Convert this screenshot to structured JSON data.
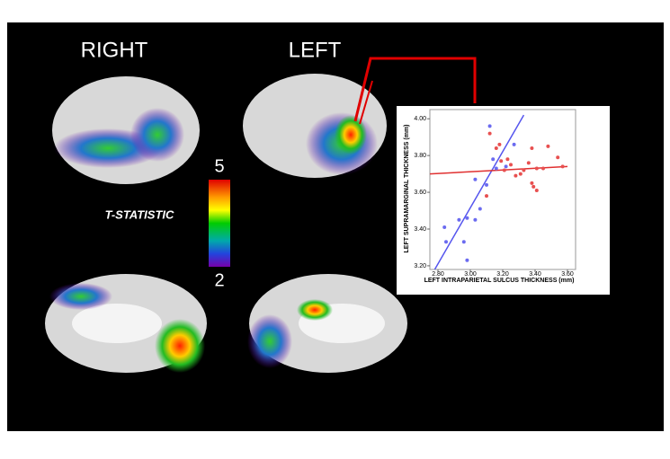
{
  "panels": {
    "right": "RIGHT",
    "left": "LEFT"
  },
  "colorbar": {
    "title": "T-STATISTIC",
    "lim": [
      2,
      5
    ],
    "ticks": [
      5,
      2
    ]
  },
  "chart_data": {
    "type": "scatter",
    "xlabel": "LEFT INTRAPARIETAL SULCUS THICKNESS (mm)",
    "ylabel": "LEFT SUPRAMARGINAL THICKNESS (mm)",
    "xlim": [
      2.75,
      3.65
    ],
    "ylim": [
      3.18,
      4.05
    ],
    "xticks": [
      {
        "value": 2.8,
        "label": "2.80"
      },
      {
        "value": 3.0,
        "label": "3.00"
      },
      {
        "value": 3.2,
        "label": "3.20"
      },
      {
        "value": 3.4,
        "label": "3.40"
      },
      {
        "value": 3.6,
        "label": "3.60"
      }
    ],
    "yticks": [
      {
        "value": 3.2,
        "label": "3.20"
      },
      {
        "value": 3.4,
        "label": "3.40"
      },
      {
        "value": 3.6,
        "label": "3.60"
      },
      {
        "value": 3.8,
        "label": "3.80"
      },
      {
        "value": 4.0,
        "label": "4.00"
      }
    ],
    "series": [
      {
        "color": "#6b6bf0",
        "x": [
          2.84,
          2.85,
          2.93,
          2.96,
          2.98,
          2.98,
          3.03,
          3.03,
          3.06,
          3.1,
          3.12,
          3.14,
          3.16,
          3.22,
          3.27
        ],
        "values": [
          3.41,
          3.33,
          3.45,
          3.33,
          3.46,
          3.23,
          3.45,
          3.67,
          3.51,
          3.64,
          3.96,
          3.78,
          3.73,
          3.74,
          3.86
        ]
      },
      {
        "color": "#e85050",
        "x": [
          3.1,
          3.12,
          3.16,
          3.18,
          3.19,
          3.21,
          3.23,
          3.25,
          3.28,
          3.31,
          3.33,
          3.36,
          3.38,
          3.38,
          3.39,
          3.41,
          3.41,
          3.45,
          3.48,
          3.54,
          3.57
        ],
        "values": [
          3.58,
          3.92,
          3.84,
          3.86,
          3.77,
          3.72,
          3.78,
          3.75,
          3.69,
          3.7,
          3.72,
          3.76,
          3.84,
          3.65,
          3.63,
          3.61,
          3.73,
          3.73,
          3.85,
          3.79,
          3.74
        ]
      }
    ],
    "fits": [
      {
        "color": "#5555ee",
        "x": [
          2.78,
          3.33
        ],
        "values": [
          3.18,
          4.02
        ]
      },
      {
        "color": "#e03030",
        "x": [
          2.75,
          3.6
        ],
        "values": [
          3.7,
          3.74
        ]
      }
    ]
  }
}
